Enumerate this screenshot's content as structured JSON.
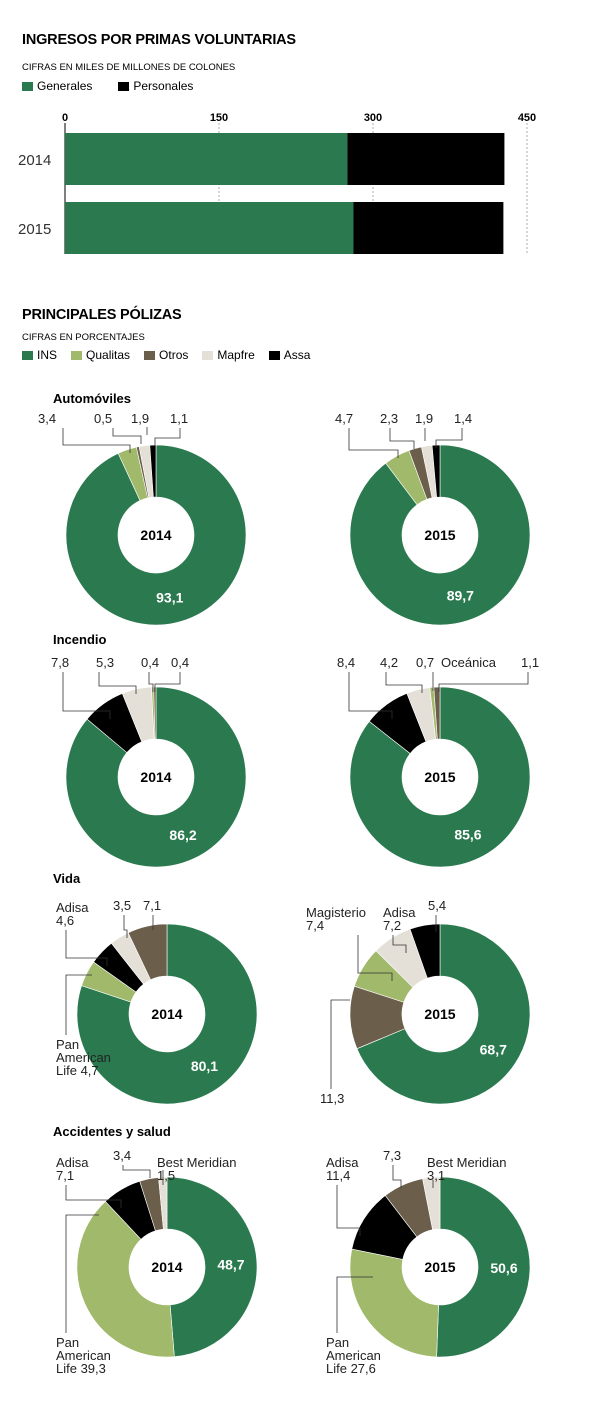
{
  "colors": {
    "ins": "#2b7a4f",
    "qualitas": "#a0b96a",
    "otros": "#6b5f4b",
    "mapfre": "#e4dfd7",
    "assa": "#000000"
  },
  "bar_section": {
    "title": "INGRESOS POR PRIMAS VOLUNTARIAS",
    "subtitle": "CIFRAS EN MILES DE MILLONES DE COLONES",
    "legend": [
      {
        "label": "Generales",
        "color": "#2b7a4f"
      },
      {
        "label": "Personales",
        "color": "#000000"
      }
    ]
  },
  "policies_section": {
    "title": "PRINCIPALES PÓLIZAS",
    "subtitle": "CIFRAS EN PORCENTAJES",
    "legend": [
      {
        "label": "INS",
        "color": "#2b7a4f"
      },
      {
        "label": "Qualitas",
        "color": "#a0b96a"
      },
      {
        "label": "Otros",
        "color": "#6b5f4b"
      },
      {
        "label": "Mapfre",
        "color": "#e4dfd7"
      },
      {
        "label": "Assa",
        "color": "#000000"
      }
    ]
  },
  "chart_data": [
    {
      "type": "bar",
      "orientation": "horizontal",
      "stacked": true,
      "categories": [
        "2014",
        "2015"
      ],
      "series": [
        {
          "name": "Generales",
          "values": [
            275,
            281
          ],
          "color": "#2b7a4f"
        },
        {
          "name": "Personales",
          "values": [
            153,
            146
          ],
          "color": "#000000"
        }
      ],
      "xlim": [
        0,
        450
      ],
      "xticks": [
        "0",
        "150",
        "300",
        "450"
      ],
      "grid": "vertical dashed"
    },
    {
      "type": "pie",
      "variant": "donut",
      "group": "Automóviles",
      "center_label": "2014",
      "slices": [
        {
          "name": "INS",
          "value": 93.1,
          "label": "93,1",
          "color": "#2b7a4f"
        },
        {
          "name": "Qualitas",
          "value": 3.4,
          "label": "3,4",
          "color": "#a0b96a"
        },
        {
          "name": "Otros",
          "value": 0.5,
          "label": "0,5",
          "color": "#6b5f4b"
        },
        {
          "name": "Mapfre",
          "value": 1.9,
          "label": "1,9",
          "color": "#e4dfd7"
        },
        {
          "name": "Assa",
          "value": 1.1,
          "label": "1,1",
          "color": "#000000"
        }
      ]
    },
    {
      "type": "pie",
      "variant": "donut",
      "group": "Automóviles",
      "center_label": "2015",
      "slices": [
        {
          "name": "INS",
          "value": 89.7,
          "label": "89,7",
          "color": "#2b7a4f"
        },
        {
          "name": "Qualitas",
          "value": 4.7,
          "label": "4,7",
          "color": "#a0b96a"
        },
        {
          "name": "Otros",
          "value": 2.3,
          "label": "2,3",
          "color": "#6b5f4b"
        },
        {
          "name": "Mapfre",
          "value": 1.9,
          "label": "1,9",
          "color": "#e4dfd7"
        },
        {
          "name": "Assa",
          "value": 1.4,
          "label": "1,4",
          "color": "#000000"
        }
      ]
    },
    {
      "type": "pie",
      "variant": "donut",
      "group": "Incendio",
      "center_label": "2014",
      "slices": [
        {
          "name": "INS",
          "value": 86.2,
          "label": "86,2",
          "color": "#2b7a4f"
        },
        {
          "name": "Assa",
          "value": 7.8,
          "label": "7,8",
          "color": "#000000"
        },
        {
          "name": "Mapfre",
          "value": 5.3,
          "label": "5,3",
          "color": "#e4dfd7"
        },
        {
          "name": "Qualitas",
          "value": 0.4,
          "label": "0,4",
          "color": "#a0b96a"
        },
        {
          "name": "Otros",
          "value": 0.4,
          "label": "0,4",
          "color": "#6b5f4b"
        }
      ]
    },
    {
      "type": "pie",
      "variant": "donut",
      "group": "Incendio",
      "center_label": "2015",
      "slices": [
        {
          "name": "INS",
          "value": 85.6,
          "label": "85,6",
          "color": "#2b7a4f"
        },
        {
          "name": "Assa",
          "value": 8.4,
          "label": "8,4",
          "color": "#000000"
        },
        {
          "name": "Mapfre",
          "value": 4.2,
          "label": "4,2",
          "color": "#e4dfd7"
        },
        {
          "name": "Qualitas",
          "value": 0.7,
          "label": "0,7",
          "color": "#a0b96a"
        },
        {
          "name": "Oceánica",
          "value": 1.1,
          "label": "1,1",
          "color": "#6b5f4b"
        }
      ],
      "annotation": "Oceánica"
    },
    {
      "type": "pie",
      "variant": "donut",
      "group": "Vida",
      "center_label": "2014",
      "slices": [
        {
          "name": "INS",
          "value": 80.1,
          "label": "80,1",
          "color": "#2b7a4f"
        },
        {
          "name": "Pan American Life",
          "value": 4.7,
          "label": "4,7",
          "color": "#a0b96a"
        },
        {
          "name": "Adisa",
          "value": 4.6,
          "label": "4,6",
          "color": "#000000"
        },
        {
          "name": "Mapfre",
          "value": 3.5,
          "label": "3,5",
          "color": "#e4dfd7"
        },
        {
          "name": "Otros",
          "value": 7.1,
          "label": "7,1",
          "color": "#6b5f4b"
        }
      ]
    },
    {
      "type": "pie",
      "variant": "donut",
      "group": "Vida",
      "center_label": "2015",
      "slices": [
        {
          "name": "INS",
          "value": 68.7,
          "label": "68,7",
          "color": "#2b7a4f"
        },
        {
          "name": "Otros",
          "value": 11.3,
          "label": "11,3",
          "color": "#6b5f4b"
        },
        {
          "name": "Magisterio",
          "value": 7.4,
          "label": "7,4",
          "color": "#a0b96a"
        },
        {
          "name": "Adisa",
          "value": 7.2,
          "label": "7,2",
          "color": "#e4dfd7"
        },
        {
          "name": "Assa",
          "value": 5.4,
          "label": "5,4",
          "color": "#000000"
        }
      ]
    },
    {
      "type": "pie",
      "variant": "donut",
      "group": "Accidentes y salud",
      "center_label": "2014",
      "slices": [
        {
          "name": "INS",
          "value": 48.7,
          "label": "48,7",
          "color": "#2b7a4f"
        },
        {
          "name": "Pan American Life",
          "value": 39.3,
          "label": "39,3",
          "color": "#a0b96a"
        },
        {
          "name": "Adisa",
          "value": 7.1,
          "label": "7,1",
          "color": "#000000"
        },
        {
          "name": "Otros",
          "value": 3.4,
          "label": "3,4",
          "color": "#6b5f4b"
        },
        {
          "name": "Best Meridian",
          "value": 1.5,
          "label": "1,5",
          "color": "#e4dfd7"
        }
      ]
    },
    {
      "type": "pie",
      "variant": "donut",
      "group": "Accidentes y salud",
      "center_label": "2015",
      "slices": [
        {
          "name": "INS",
          "value": 50.6,
          "label": "50,6",
          "color": "#2b7a4f"
        },
        {
          "name": "Pan American Life",
          "value": 27.6,
          "label": "27,6",
          "color": "#a0b96a"
        },
        {
          "name": "Adisa",
          "value": 11.4,
          "label": "11,4",
          "color": "#000000"
        },
        {
          "name": "Otros",
          "value": 7.3,
          "label": "7,3",
          "color": "#6b5f4b"
        },
        {
          "name": "Best Meridian",
          "value": 3.1,
          "label": "3,1",
          "color": "#e4dfd7"
        }
      ]
    }
  ]
}
